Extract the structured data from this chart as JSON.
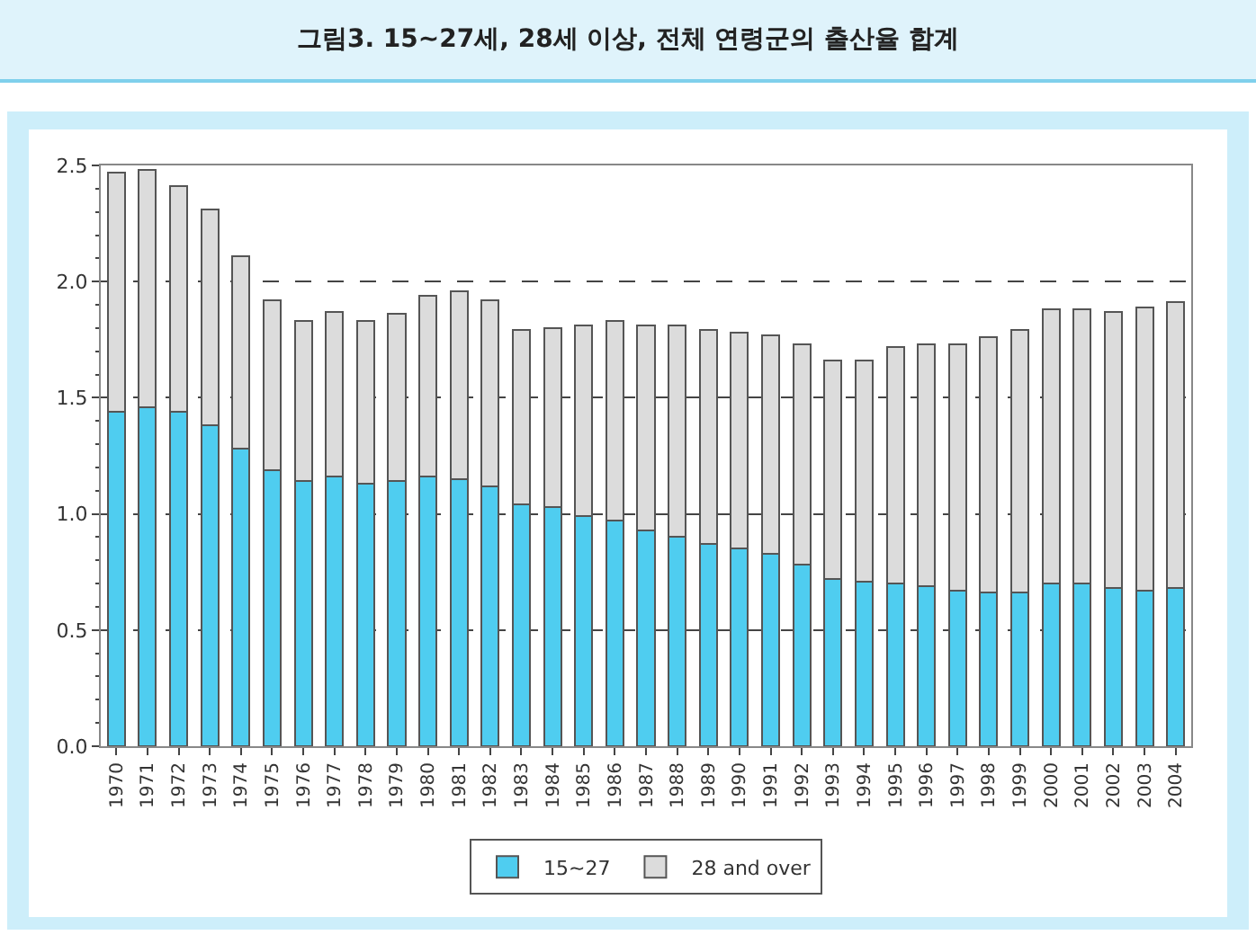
{
  "chart_data": {
    "type": "bar",
    "title": "그림3. 15~27세, 28세 이상, 전체 연령군의 출산율 합계",
    "stacked": true,
    "categories": [
      "1970",
      "1971",
      "1972",
      "1973",
      "1974",
      "1975",
      "1976",
      "1977",
      "1978",
      "1979",
      "1980",
      "1981",
      "1982",
      "1983",
      "1984",
      "1985",
      "1986",
      "1987",
      "1988",
      "1989",
      "1990",
      "1991",
      "1992",
      "1993",
      "1994",
      "1995",
      "1996",
      "1997",
      "1998",
      "1999",
      "2000",
      "2001",
      "2002",
      "2003",
      "2004"
    ],
    "series": [
      {
        "name": "15~27",
        "color": "#4fcdf0",
        "values": [
          1.44,
          1.46,
          1.44,
          1.38,
          1.28,
          1.19,
          1.14,
          1.16,
          1.13,
          1.14,
          1.16,
          1.15,
          1.12,
          1.04,
          1.03,
          0.99,
          0.97,
          0.93,
          0.9,
          0.87,
          0.85,
          0.83,
          0.78,
          0.72,
          0.71,
          0.7,
          0.69,
          0.67,
          0.66,
          0.66,
          0.7,
          0.7,
          0.68,
          0.67,
          0.68
        ]
      },
      {
        "name": "28 and over",
        "color": "#dcdcdc",
        "values": [
          1.03,
          1.02,
          0.97,
          0.93,
          0.83,
          0.73,
          0.69,
          0.71,
          0.7,
          0.72,
          0.78,
          0.81,
          0.8,
          0.75,
          0.77,
          0.82,
          0.86,
          0.88,
          0.91,
          0.92,
          0.93,
          0.94,
          0.95,
          0.94,
          0.95,
          1.02,
          1.04,
          1.06,
          1.1,
          1.13,
          1.18,
          1.18,
          1.19,
          1.22,
          1.23
        ]
      }
    ],
    "ylim": [
      0,
      2.5
    ],
    "yticks": [
      {
        "value": 0,
        "label": "0.0"
      },
      {
        "value": 0.5,
        "label": "0.5"
      },
      {
        "value": 1,
        "label": "1.0"
      },
      {
        "value": 1.5,
        "label": "1.5"
      },
      {
        "value": 2,
        "label": "2.0"
      },
      {
        "value": 2.5,
        "label": "2.5"
      }
    ],
    "grid": "y",
    "legend": "bottom"
  }
}
